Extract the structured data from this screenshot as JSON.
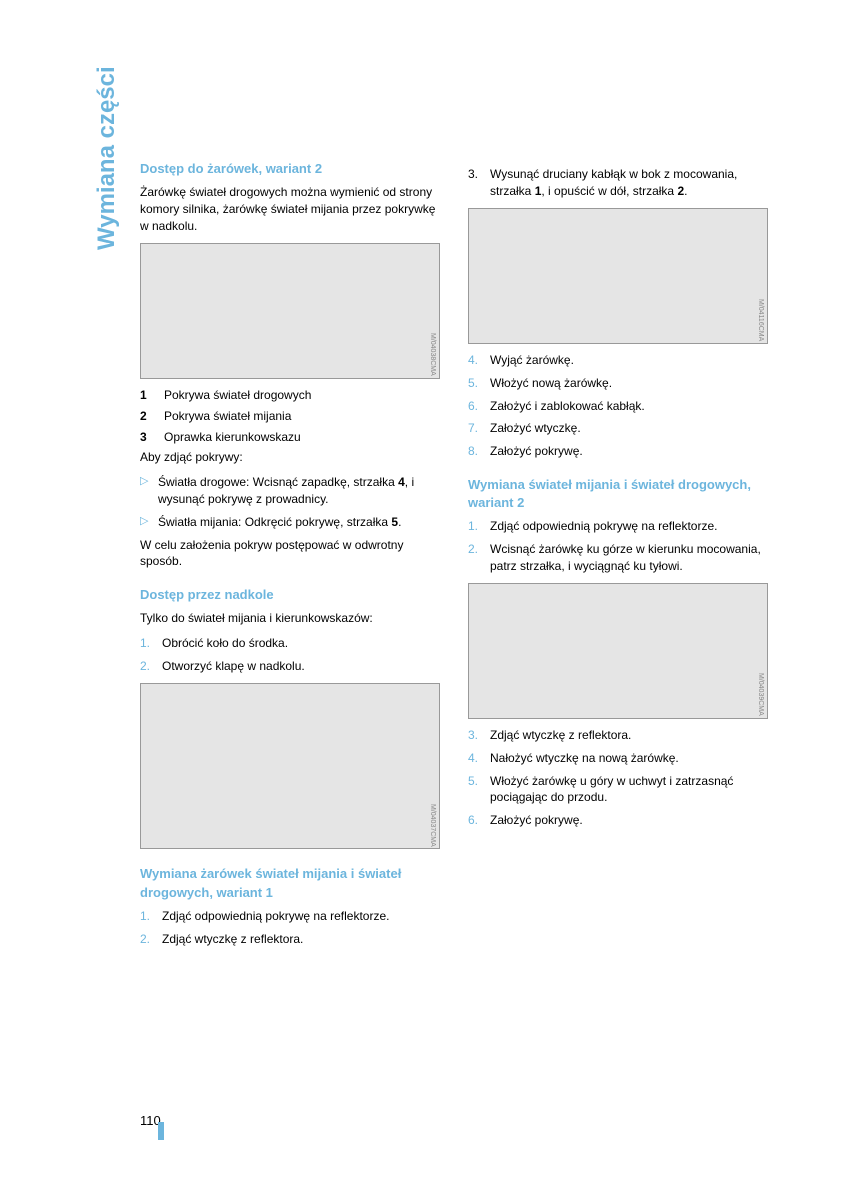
{
  "sidebar_label": "Wymiana części",
  "page_number": "110",
  "colors": {
    "accent": "#6cb5dd",
    "text": "#000000",
    "bg": "#ffffff",
    "image_bg": "#e5e5e5"
  },
  "left": {
    "h1": "Dostęp do żarówek, wariant 2",
    "p1": "Żarówkę świateł drogowych można wymienić od strony komory silnika, żarówkę świateł mijania przez pokrywkę w nadkolu.",
    "img1_code": "M/04038CMA",
    "legend": [
      {
        "n": "1",
        "t": "Pokrywa świateł drogowych"
      },
      {
        "n": "2",
        "t": "Pokrywa świateł mijania"
      },
      {
        "n": "3",
        "t": "Oprawka kierunkowskazu"
      }
    ],
    "p2": "Aby zdjąć pokrywy:",
    "bullets": [
      "Światła drogowe: Wcisnąć zapadkę, strzałka 4, i wysunąć pokrywę z prowadnicy.",
      "Światła mijania: Odkręcić pokrywę, strzałka 5."
    ],
    "p3": "W celu założenia pokryw postępować w odwrotny sposób.",
    "h2": "Dostęp przez nadkole",
    "p4": "Tylko do świateł mijania i kierunkowskazów:",
    "ol1": [
      {
        "n": "1.",
        "t": "Obrócić koło do środka."
      },
      {
        "n": "2.",
        "t": "Otworzyć klapę w nadkolu."
      }
    ],
    "img2_code": "M/04037CMA",
    "h3": "Wymiana żarówek świateł mijania i świateł drogowych, wariant 1",
    "ol2": [
      {
        "n": "1.",
        "t": "Zdjąć odpowiednią pokrywę na reflektorze."
      },
      {
        "n": "2.",
        "t": "Zdjąć wtyczkę z reflektora."
      }
    ]
  },
  "right": {
    "ol_top": [
      {
        "n": "3.",
        "t": "Wysunąć druciany kabłąk w bok z mocowania, strzałka 1, i opuścić w dół, strzałka 2."
      }
    ],
    "img1_code": "M/04116CMA",
    "ol_mid": [
      {
        "n": "4.",
        "t": "Wyjąć żarówkę."
      },
      {
        "n": "5.",
        "t": "Włożyć nową żarówkę."
      },
      {
        "n": "6.",
        "t": "Założyć i zablokować kabłąk."
      },
      {
        "n": "7.",
        "t": "Założyć wtyczkę."
      },
      {
        "n": "8.",
        "t": "Założyć pokrywę."
      }
    ],
    "h1": "Wymiana świateł mijania i świateł drogowych, wariant 2",
    "ol_a": [
      {
        "n": "1.",
        "t": "Zdjąć odpowiednią pokrywę na reflektorze."
      },
      {
        "n": "2.",
        "t": "Wcisnąć żarówkę ku górze w kierunku mocowania, patrz strzałka, i wyciągnąć ku tyłowi."
      }
    ],
    "img2_code": "M/04039CMA",
    "ol_b": [
      {
        "n": "3.",
        "t": "Zdjąć wtyczkę z reflektora."
      },
      {
        "n": "4.",
        "t": "Nałożyć wtyczkę na nową żarówkę."
      },
      {
        "n": "5.",
        "t": "Włożyć żarówkę u góry w uchwyt i zatrzasnąć pociągając do przodu."
      },
      {
        "n": "6.",
        "t": "Założyć pokrywę."
      }
    ]
  }
}
